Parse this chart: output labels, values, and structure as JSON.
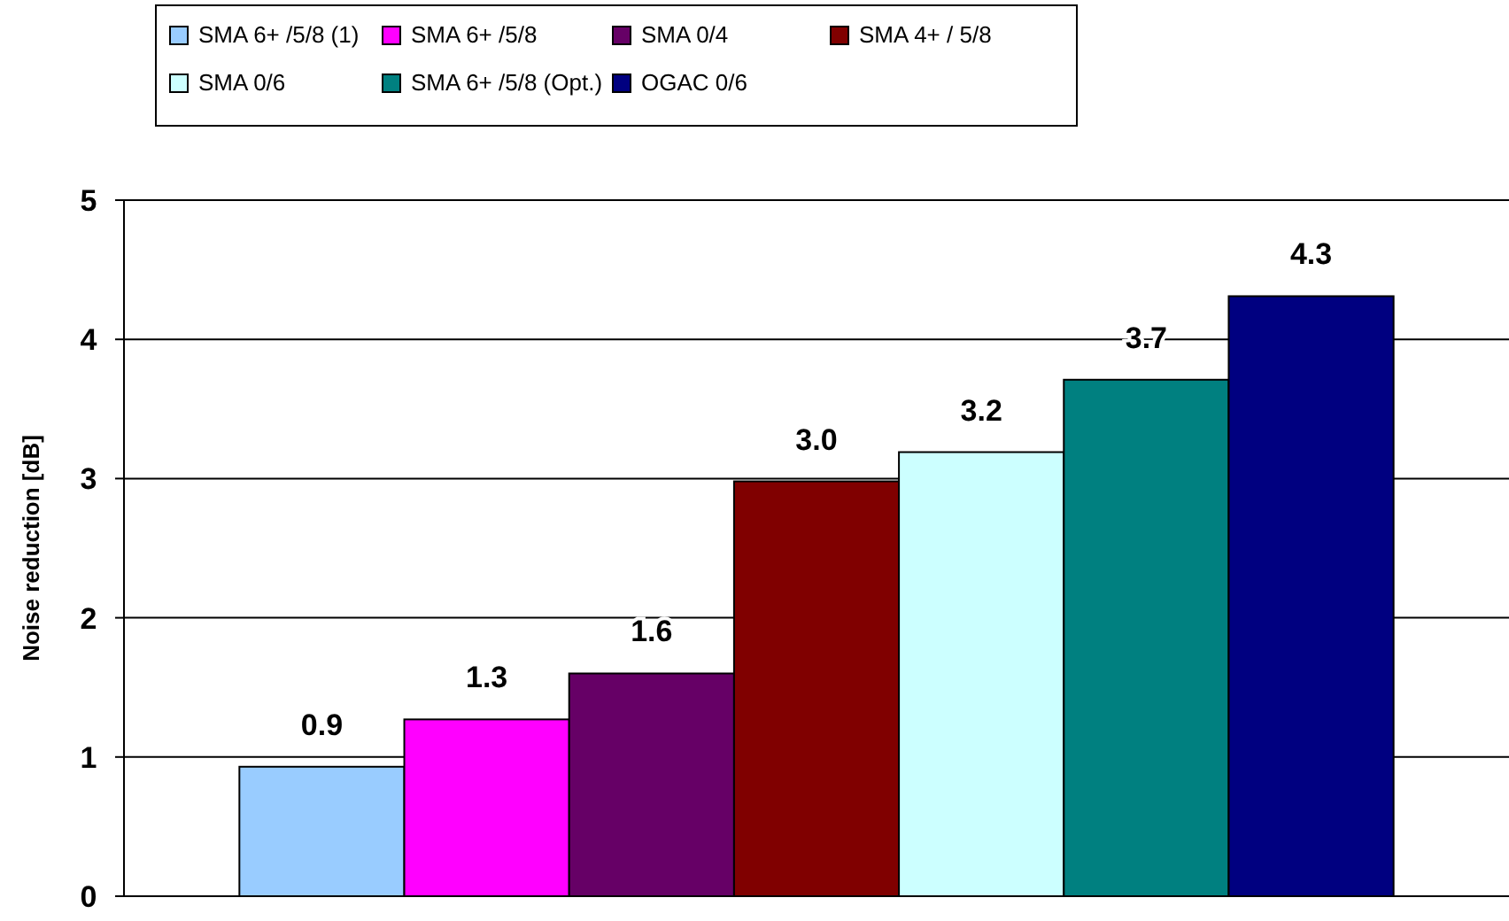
{
  "chart_data": {
    "type": "bar",
    "ylabel": "Noise reduction [dB]",
    "categories": [
      null
    ],
    "series": [
      {
        "name": "SMA 6+ /5/8 (1)",
        "color": "#99ccff",
        "values": [
          0.93
        ],
        "value_labels": [
          "0.9"
        ]
      },
      {
        "name": "SMA 6+ /5/8",
        "color": "#ff00ff",
        "values": [
          1.27
        ],
        "value_labels": [
          "1.3"
        ]
      },
      {
        "name": "SMA 0/4",
        "color": "#660066",
        "values": [
          1.6
        ],
        "value_labels": [
          "1.6"
        ]
      },
      {
        "name": "SMA 4+ / 5/8",
        "color": "#800000",
        "values": [
          2.98
        ],
        "value_labels": [
          "3.0"
        ]
      },
      {
        "name": "SMA 0/6",
        "color": "#ccffff",
        "values": [
          3.19
        ],
        "value_labels": [
          "3.2"
        ]
      },
      {
        "name": "SMA 6+ /5/8 (Opt.)",
        "color": "#008080",
        "values": [
          3.71
        ],
        "value_labels": [
          "3.7"
        ]
      },
      {
        "name": "OGAC 0/6",
        "color": "#000080",
        "values": [
          4.31
        ],
        "value_labels": [
          "4.3"
        ]
      }
    ],
    "ylim": [
      0,
      5
    ],
    "yticks": [
      0,
      1,
      2,
      3,
      4,
      5
    ],
    "grid": "y",
    "legend": "top"
  }
}
